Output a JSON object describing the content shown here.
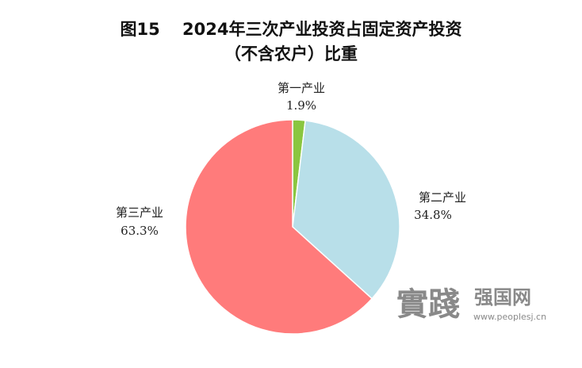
{
  "chart_data": {
    "type": "pie",
    "title": "图15　 2024年三次产业投资占固定资产投资",
    "subtitle": "（不含农户）比重",
    "unit": "%",
    "start_angle_deg": 0,
    "direction": "clockwise",
    "slices": [
      {
        "label": "第一产业",
        "value": 1.9,
        "display": "1.9%",
        "color": "#8ac640"
      },
      {
        "label": "第二产业",
        "value": 34.8,
        "display": "34.8%",
        "color": "#b8dfe9"
      },
      {
        "label": "第三产业",
        "value": 63.3,
        "display": "63.3%",
        "color": "#ff7b7b"
      }
    ]
  },
  "watermark": {
    "logo_text": "實踐",
    "brand": "强国网",
    "url": "www.peoplesj.cn"
  }
}
